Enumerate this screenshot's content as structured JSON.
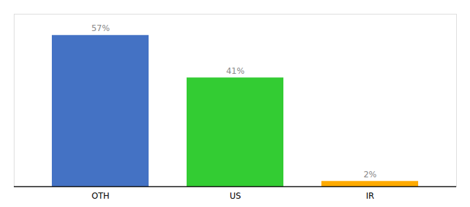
{
  "chart_data": {
    "type": "bar",
    "categories": [
      "OTH",
      "US",
      "IR"
    ],
    "values": [
      57,
      41,
      2
    ],
    "value_labels": [
      "57%",
      "41%",
      "2%"
    ],
    "colors": [
      "#4472c4",
      "#33cc33",
      "#ffaa00"
    ],
    "data_labels": true,
    "ylim": [
      0,
      65
    ],
    "tick_labels": "x"
  }
}
